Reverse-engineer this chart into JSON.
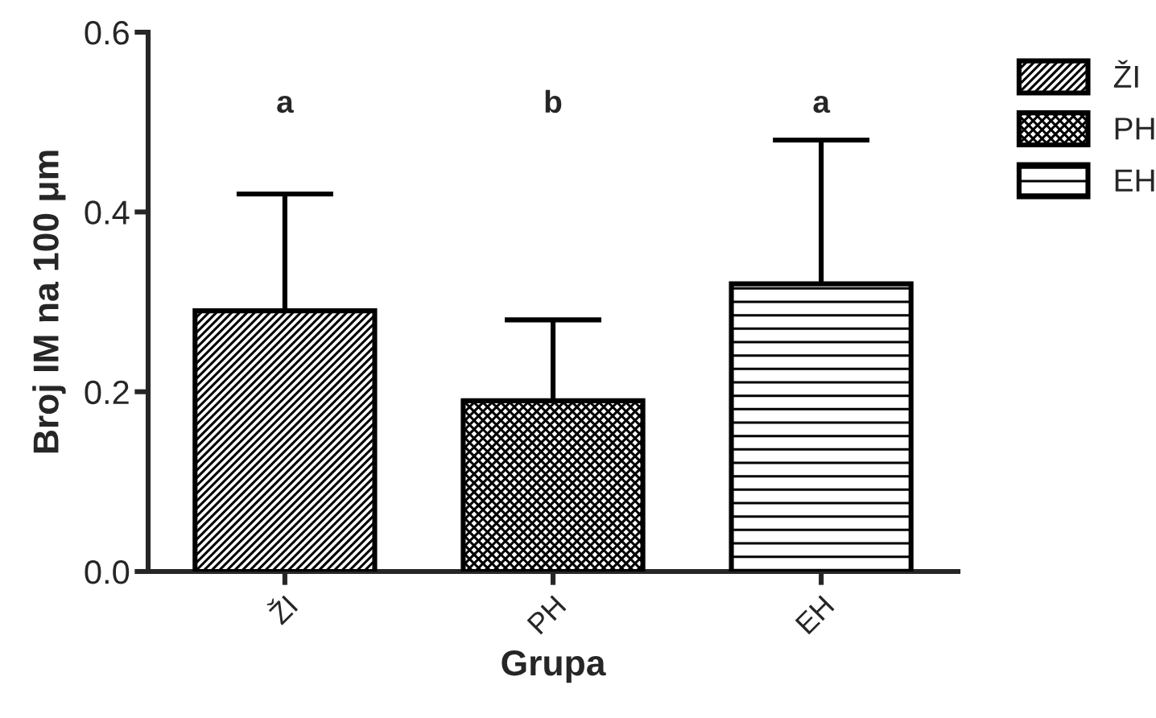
{
  "chart_data": {
    "type": "bar",
    "categories": [
      "ŽI",
      "PH",
      "EH"
    ],
    "series": [
      {
        "name": "ŽI",
        "color": "#000000",
        "values": [
          0.29,
          null,
          null
        ],
        "errors": [
          [
            0.29,
            0.42
          ],
          null,
          null
        ]
      },
      {
        "name": "PH",
        "color": "#000000",
        "values": [
          null,
          0.19,
          null
        ],
        "errors": [
          null,
          [
            0.19,
            0.28
          ],
          null
        ]
      },
      {
        "name": "EH",
        "color": "#000000",
        "values": [
          null,
          null,
          0.32
        ],
        "errors": [
          null,
          null,
          [
            0.32,
            0.48
          ]
        ]
      }
    ],
    "xlabel": "Grupa",
    "ylabel": "Broj IM na 100 μm",
    "ylim": [
      0,
      0.6
    ],
    "yticks": [
      {
        "value": 0,
        "label": "0.0"
      },
      0.2,
      0.4,
      0.6
    ],
    "annotations": [
      "a",
      "b",
      "a"
    ],
    "legend": "top right",
    "grid": false
  }
}
